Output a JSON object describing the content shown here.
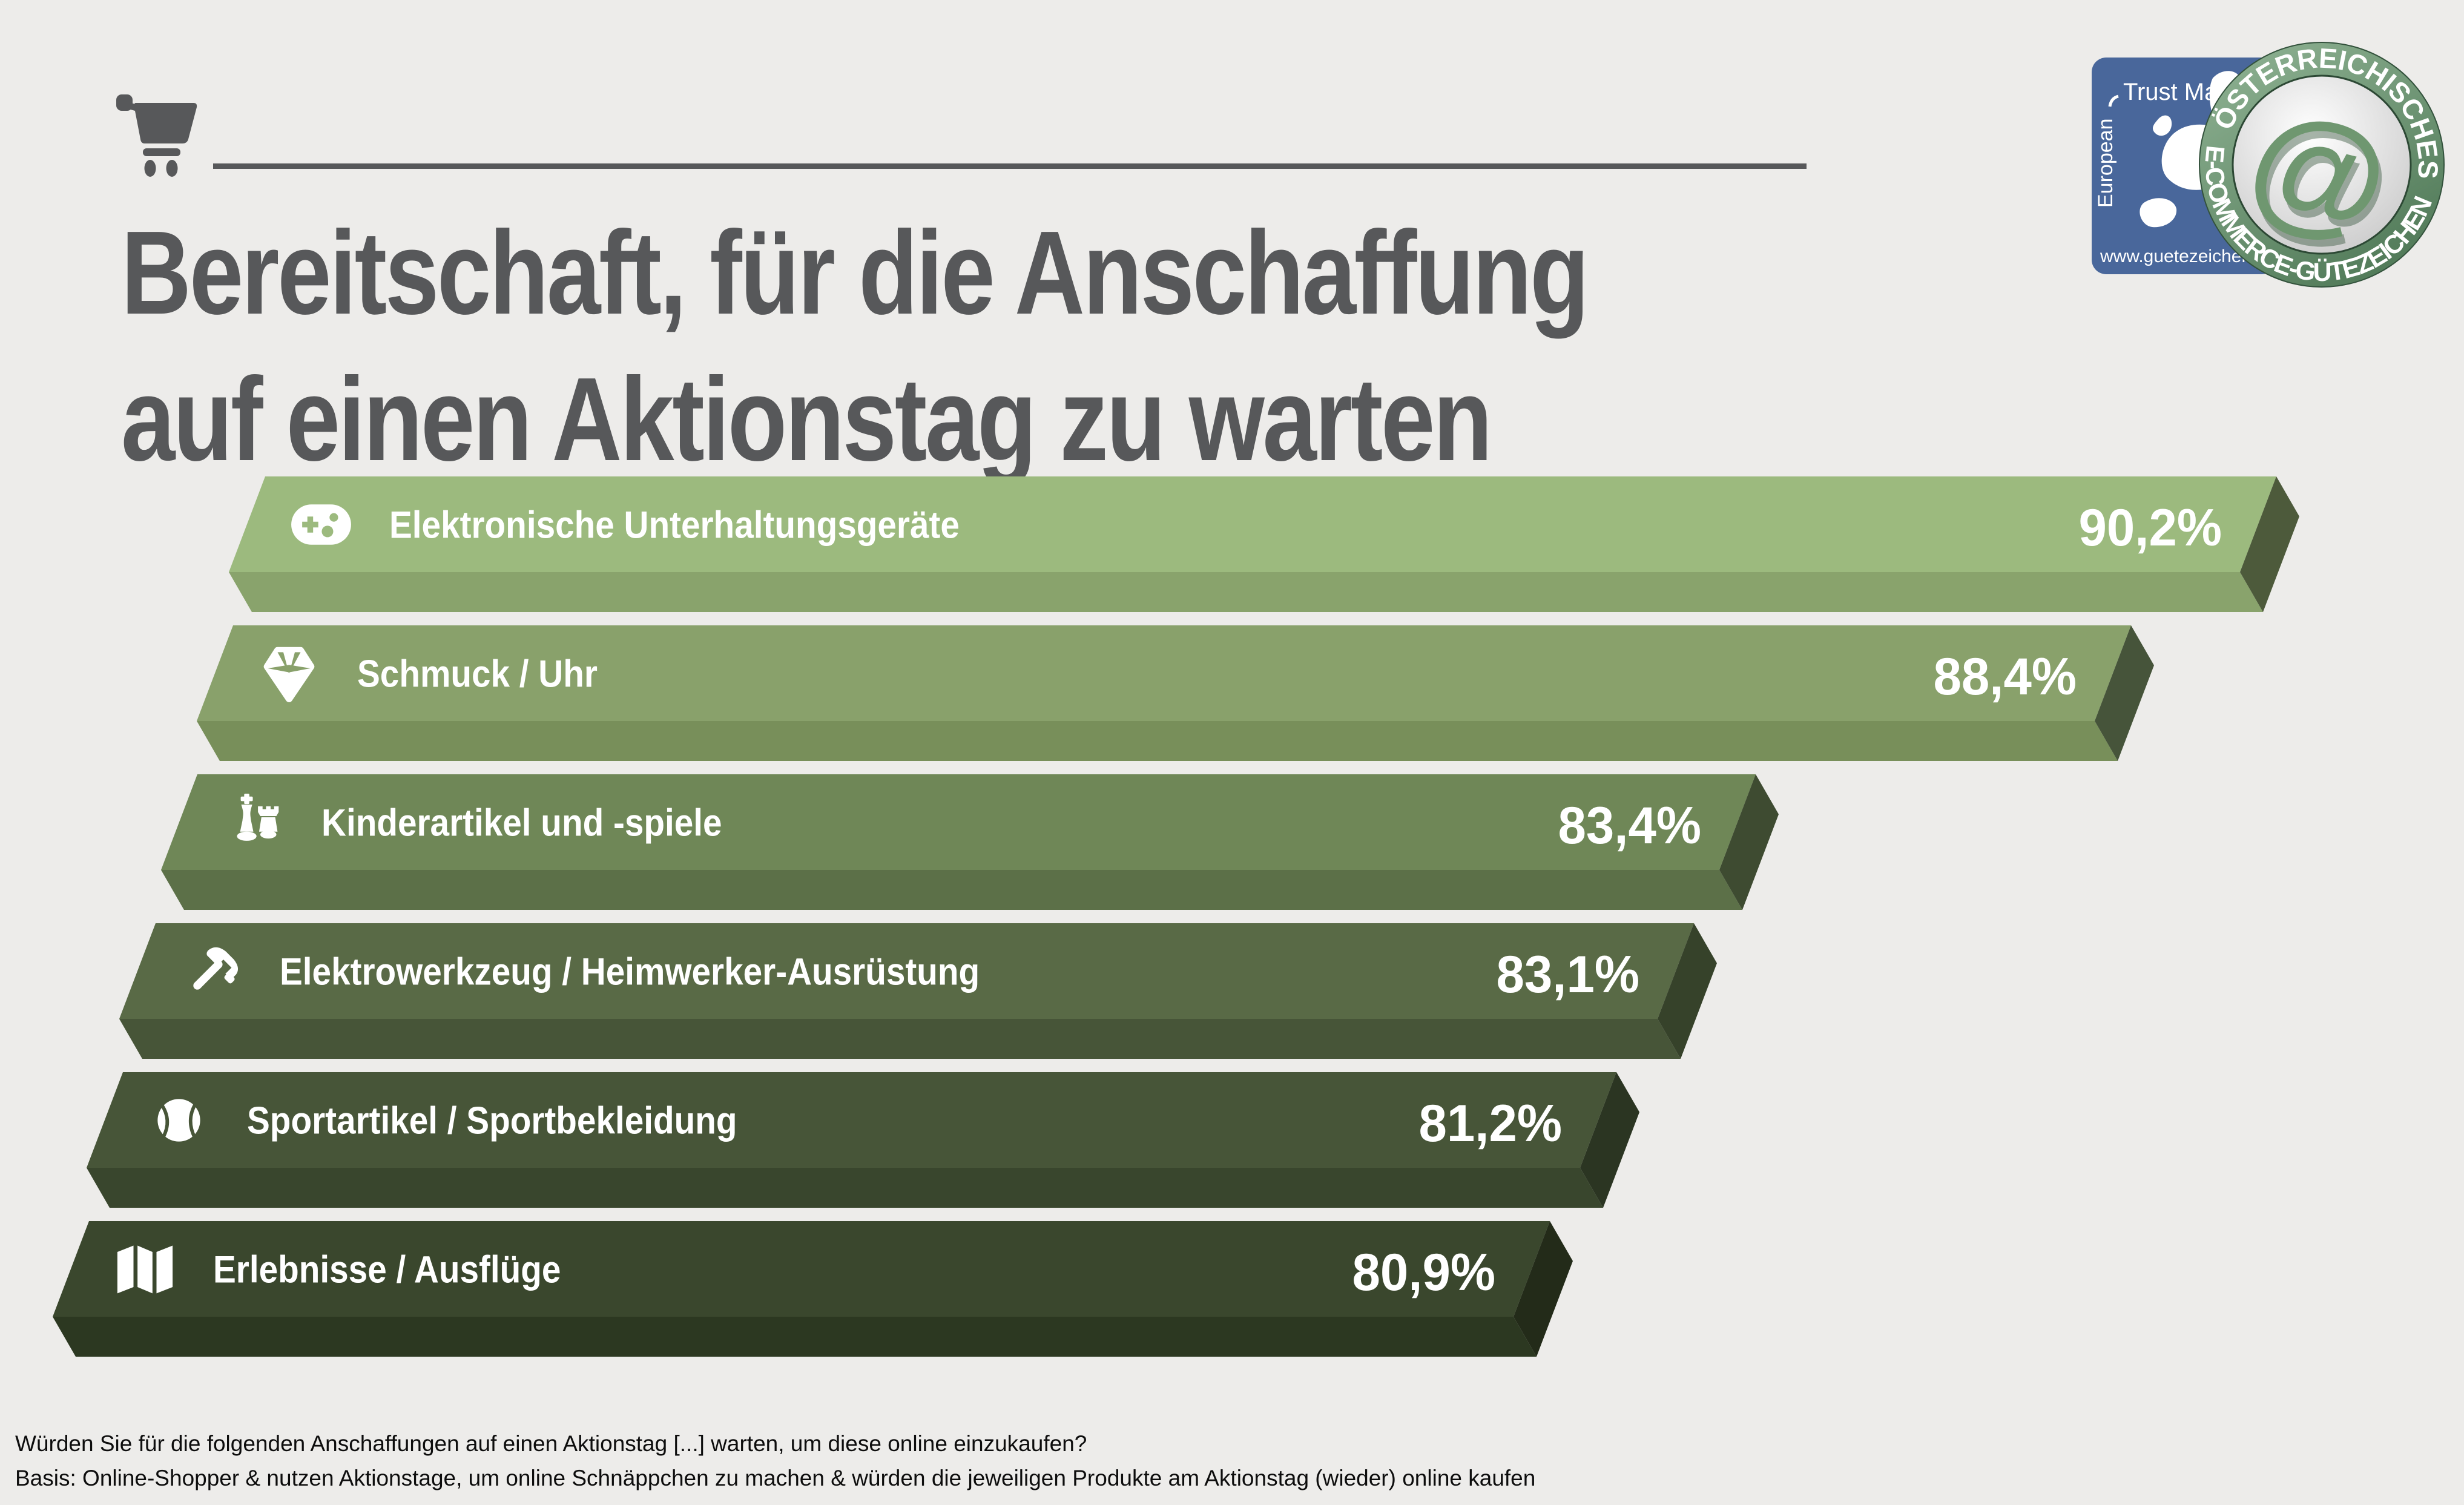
{
  "page": {
    "background": "#edecea"
  },
  "header": {
    "title_line1": "Bereitschaft, für die Anschaffung",
    "title_line2": "auf einen Aktionstag zu warten",
    "title_color": "#57585a"
  },
  "logos": {
    "trust_mark": {
      "side_label": "European",
      "top_label": "Trust Mark",
      "url_label": "www.guetezeichen.at",
      "bg_color": "#49679b"
    },
    "seal": {
      "top_text": "ÖSTERREICHISCHES",
      "bottom_text": "E-COMMERCE-GÜTEZEICHEN",
      "at_symbol": "@",
      "ring_color": "#5d8766"
    }
  },
  "chart_data": {
    "type": "bar",
    "orientation": "horizontal",
    "unit": "%",
    "value_range": [
      0,
      100
    ],
    "categories": [
      "Elektronische Unterhaltungsgeräte",
      "Schmuck / Uhr",
      "Kinderartikel und -spiele",
      "Elektrowerkzeug / Heimwerker-Ausrüstung",
      "Sportartikel / Sportbekleidung",
      "Erlebnisse / Ausflüge"
    ],
    "values": [
      90.2,
      88.4,
      83.4,
      83.1,
      81.2,
      80.9
    ],
    "value_labels": [
      "90,2%",
      "88,4%",
      "83,4%",
      "83,1%",
      "81,2%",
      "80,9%"
    ],
    "icons": [
      "game-controller",
      "gem",
      "chess-pieces",
      "hammer",
      "sports-ball",
      "folded-map"
    ],
    "label_color": "#ffffff",
    "bar_colors": [
      {
        "face": "#9cba7e",
        "side": "#89a36c",
        "cap": "#4d5a3b"
      },
      {
        "face": "#89a16b",
        "side": "#788f5a",
        "cap": "#46543a"
      },
      {
        "face": "#6f8757",
        "side": "#5c7048",
        "cap": "#3e4b31"
      },
      {
        "face": "#596a46",
        "side": "#475538",
        "cap": "#36422a"
      },
      {
        "face": "#475538",
        "side": "#39462d",
        "cap": "#2b3522"
      },
      {
        "face": "#3a472d",
        "side": "#2c3821",
        "cap": "#232b19"
      }
    ]
  },
  "footer": {
    "line1": "Würden Sie für die folgenden Anschaffungen auf einen Aktionstag [...] warten, um diese online einzukaufen?",
    "line2": "Basis: Online-Shopper & nutzen Aktionstage, um online Schnäppchen zu machen & würden die jeweiligen Produkte am Aktionstag (wieder) online kaufen"
  }
}
